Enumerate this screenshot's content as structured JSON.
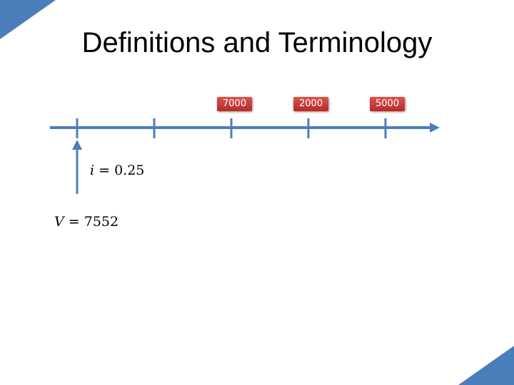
{
  "slide": {
    "title": "Definitions and Terminology",
    "accent_color": "#4a7ebb"
  },
  "timeline": {
    "line_color": "#4a7ebb",
    "cash_flows": [
      {
        "value": "7000"
      },
      {
        "value": "2000"
      },
      {
        "value": "5000"
      }
    ],
    "rate": {
      "symbol": "i",
      "value": "0.25"
    },
    "present_value": {
      "symbol": "V",
      "value": "7552"
    },
    "cash_color": "#c0392b"
  }
}
